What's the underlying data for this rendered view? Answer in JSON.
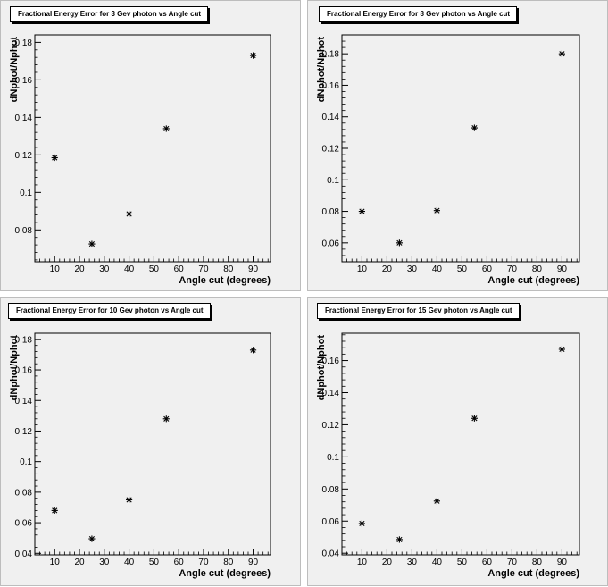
{
  "colors": {
    "pad_background": "#f0f0f0",
    "frame": "#000000",
    "marker": "#000000"
  },
  "chart_data": [
    {
      "type": "scatter",
      "title": "Fractional Energy Error for 3 Gev photon vs Angle cut",
      "xlabel": "Angle cut (degrees)",
      "ylabel": "dNphot/Nphot",
      "x": [
        10,
        25,
        40,
        55,
        90
      ],
      "y": [
        0.1185,
        0.0725,
        0.0885,
        0.134,
        0.173
      ],
      "xlim": [
        2,
        97
      ],
      "ylim": [
        0.063,
        0.184
      ],
      "xticks": [
        10,
        20,
        30,
        40,
        50,
        60,
        70,
        80,
        90
      ],
      "yticks": [
        0.08,
        0.1,
        0.12,
        0.14,
        0.16,
        0.18
      ],
      "xtick_labels": [
        "10",
        "20",
        "30",
        "40",
        "50",
        "60",
        "70",
        "80",
        "90"
      ],
      "ytick_labels": [
        "0.08",
        "0.1",
        "0.12",
        "0.14",
        "0.16",
        "0.18"
      ],
      "marker": "star",
      "grid": false
    },
    {
      "type": "scatter",
      "title": "Fractional Energy Error for 8 Gev photon vs Angle cut",
      "xlabel": "Angle cut (degrees)",
      "ylabel": "dNphot/Nphot",
      "x": [
        10,
        25,
        40,
        55,
        90
      ],
      "y": [
        0.08,
        0.06,
        0.0805,
        0.133,
        0.18
      ],
      "xlim": [
        2,
        97
      ],
      "ylim": [
        0.048,
        0.192
      ],
      "xticks": [
        10,
        20,
        30,
        40,
        50,
        60,
        70,
        80,
        90
      ],
      "yticks": [
        0.06,
        0.08,
        0.1,
        0.12,
        0.14,
        0.16,
        0.18
      ],
      "xtick_labels": [
        "10",
        "20",
        "30",
        "40",
        "50",
        "60",
        "70",
        "80",
        "90"
      ],
      "ytick_labels": [
        "0.06",
        "0.08",
        "0.1",
        "0.12",
        "0.14",
        "0.16",
        "0.18"
      ],
      "marker": "star",
      "grid": false
    },
    {
      "type": "scatter",
      "title": "Fractional Energy Error for 10 Gev photon vs Angle cut",
      "xlabel": "Angle cut (degrees)",
      "ylabel": "dNphot/Nphot",
      "x": [
        10,
        25,
        40,
        55,
        90
      ],
      "y": [
        0.068,
        0.0495,
        0.075,
        0.128,
        0.173
      ],
      "xlim": [
        2,
        97
      ],
      "ylim": [
        0.039,
        0.184
      ],
      "xticks": [
        10,
        20,
        30,
        40,
        50,
        60,
        70,
        80,
        90
      ],
      "yticks": [
        0.04,
        0.06,
        0.08,
        0.1,
        0.12,
        0.14,
        0.16,
        0.18
      ],
      "xtick_labels": [
        "10",
        "20",
        "30",
        "40",
        "50",
        "60",
        "70",
        "80",
        "90"
      ],
      "ytick_labels": [
        "0.04",
        "0.06",
        "0.08",
        "0.1",
        "0.12",
        "0.14",
        "0.16",
        "0.18"
      ],
      "marker": "star",
      "grid": false
    },
    {
      "type": "scatter",
      "title": "Fractional Energy Error for 15 Gev photon vs Angle cut",
      "xlabel": "Angle cut (degrees)",
      "ylabel": "dNphot/Nphot",
      "x": [
        10,
        25,
        40,
        55,
        90
      ],
      "y": [
        0.0585,
        0.0485,
        0.0725,
        0.124,
        0.167
      ],
      "xlim": [
        2,
        97
      ],
      "ylim": [
        0.039,
        0.177
      ],
      "xticks": [
        10,
        20,
        30,
        40,
        50,
        60,
        70,
        80,
        90
      ],
      "yticks": [
        0.04,
        0.06,
        0.08,
        0.1,
        0.12,
        0.14,
        0.16
      ],
      "xtick_labels": [
        "10",
        "20",
        "30",
        "40",
        "50",
        "60",
        "70",
        "80",
        "90"
      ],
      "ytick_labels": [
        "0.04",
        "0.06",
        "0.08",
        "0.1",
        "0.12",
        "0.14",
        "0.16"
      ],
      "marker": "star",
      "grid": false
    }
  ]
}
